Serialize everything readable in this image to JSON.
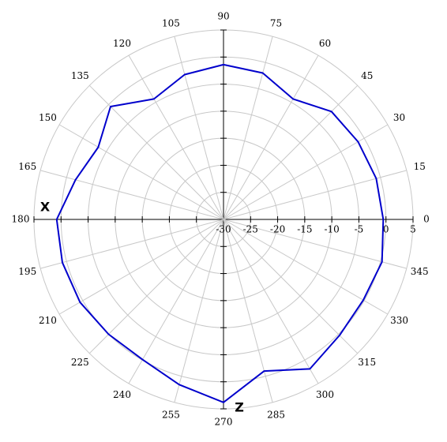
{
  "chart_data": {
    "type": "polar",
    "x": [
      0,
      15,
      30,
      45,
      60,
      75,
      90,
      105,
      120,
      135,
      150,
      165,
      180,
      195,
      210,
      225,
      240,
      255,
      270,
      285,
      300,
      315,
      330,
      345
    ],
    "xticks": [
      0,
      15,
      30,
      45,
      60,
      75,
      90,
      105,
      120,
      135,
      150,
      165,
      180,
      195,
      210,
      225,
      240,
      255,
      270,
      285,
      300,
      315,
      330,
      345
    ],
    "rlim": [
      -30,
      5
    ],
    "rticks": [
      -30,
      -25,
      -20,
      -15,
      -10,
      -5,
      0,
      5
    ],
    "grid": true,
    "annotations": [
      "X",
      "Z"
    ],
    "series": [
      {
        "color": "#0000cc",
        "values": [
          -0.5,
          -0.8,
          -1.3,
          -1.8,
          -4.3,
          -2.0,
          -1.4,
          -2.3,
          -4.3,
          -0.5,
          -3.3,
          -1.7,
          0.8,
          0.8,
          0.6,
          0.0,
          -0.1,
          1.6,
          3.8,
          -1.0,
          1.9,
          0.3,
          -0.2,
          0.3
        ]
      }
    ]
  }
}
